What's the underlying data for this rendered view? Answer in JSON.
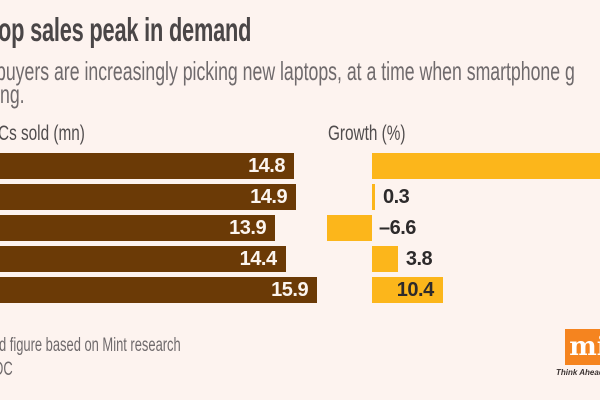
{
  "title": "op sales peak in demand",
  "subtitle": {
    "line1": "buyers are increasingly picking new laptops, at a time when smartphone g",
    "line2": "ng."
  },
  "columns": {
    "left": "Cs sold (mn)",
    "right": "Growth (%)"
  },
  "footer": {
    "note": "d figure based on Mint research",
    "source": "DC"
  },
  "logo": {
    "text": "mi",
    "tagline": "Think Ahead",
    "square_color": "#f5841f"
  },
  "colors": {
    "background": "#fdf3ef",
    "bar_brown": "#6b3a06",
    "bar_yellow": "#fcb61b",
    "title_text": "#4a4647",
    "subtitle_text": "#6f6a6c",
    "value_text_dark": "#2d2a2b",
    "value_text_light": "#fcf5ef"
  },
  "chart_data": {
    "type": "bar",
    "orientation": "horizontal",
    "note": "Category (year) labels are cropped outside the left edge of the frame; the first Growth bar extends past the right edge so its value is not visible.",
    "categories": [
      "",
      "",
      "",
      "",
      ""
    ],
    "series": [
      {
        "name": "PCs sold (mn)",
        "color": "#6b3a06",
        "values": [
          14.8,
          14.9,
          13.9,
          14.4,
          15.9
        ],
        "labels": [
          "14.8",
          "14.9",
          "13.9",
          "14.4",
          "15.9"
        ],
        "label_position": "inside-end"
      },
      {
        "name": "Growth (%)",
        "color": "#fcb61b",
        "values": [
          null,
          0.3,
          -6.6,
          3.8,
          10.4
        ],
        "labels": [
          "",
          "0.3",
          "–6.6",
          "3.8",
          "10.4"
        ],
        "label_position": "outside-end (10.4 inside-end)"
      }
    ]
  }
}
